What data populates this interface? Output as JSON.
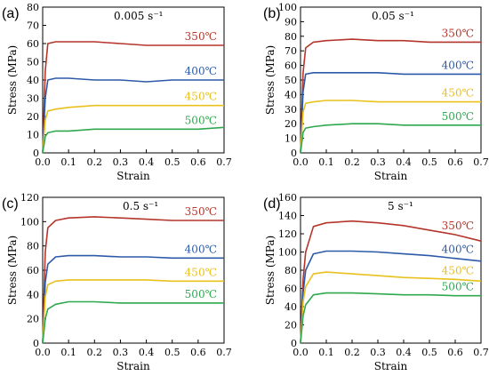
{
  "chart_data": [
    {
      "panel": "(a)",
      "rate": "0.005 s⁻¹",
      "type": "line",
      "xlabel": "Strain",
      "ylabel": "Stress (MPa)",
      "xlim": [
        0,
        0.7
      ],
      "ylim": [
        0,
        80
      ],
      "xticks": [
        "0.0",
        "0.1",
        "0.2",
        "0.3",
        "0.4",
        "0.5",
        "0.6",
        "0.7"
      ],
      "yticks": [
        "0",
        "10",
        "20",
        "30",
        "40",
        "50",
        "60",
        "70",
        "80"
      ],
      "series": [
        {
          "name": "350℃",
          "color": "#b5352a",
          "x": [
            0,
            0.01,
            0.02,
            0.05,
            0.1,
            0.2,
            0.3,
            0.4,
            0.5,
            0.6,
            0.7
          ],
          "y": [
            0,
            45,
            60,
            61,
            61,
            61,
            60,
            59,
            59,
            59,
            59
          ]
        },
        {
          "name": "400℃",
          "color": "#2c5aa8",
          "x": [
            0,
            0.01,
            0.02,
            0.05,
            0.1,
            0.2,
            0.3,
            0.4,
            0.5,
            0.6,
            0.7
          ],
          "y": [
            0,
            30,
            40,
            41,
            41,
            40,
            40,
            39,
            40,
            40,
            40
          ]
        },
        {
          "name": "450℃",
          "color": "#e8c11c",
          "x": [
            0,
            0.01,
            0.02,
            0.05,
            0.1,
            0.2,
            0.3,
            0.4,
            0.5,
            0.6,
            0.7
          ],
          "y": [
            0,
            18,
            23,
            24,
            25,
            26,
            26,
            26,
            26,
            26,
            26
          ]
        },
        {
          "name": "500℃",
          "color": "#2fa84f",
          "x": [
            0,
            0.01,
            0.02,
            0.05,
            0.1,
            0.2,
            0.3,
            0.4,
            0.5,
            0.6,
            0.7
          ],
          "y": [
            0,
            9,
            11,
            12,
            12,
            13,
            13,
            13,
            13,
            13,
            14
          ]
        }
      ]
    },
    {
      "panel": "(b)",
      "rate": "0.05 s⁻¹",
      "type": "line",
      "xlabel": "Strain",
      "ylabel": "Stress (MPa)",
      "xlim": [
        0,
        0.7
      ],
      "ylim": [
        0,
        100
      ],
      "xticks": [
        "0.0",
        "0.1",
        "0.2",
        "0.3",
        "0.4",
        "0.5",
        "0.6",
        "0.7"
      ],
      "yticks": [
        "0",
        "10",
        "20",
        "30",
        "40",
        "50",
        "60",
        "70",
        "80",
        "90",
        "100"
      ],
      "series": [
        {
          "name": "350℃",
          "color": "#b5352a",
          "x": [
            0,
            0.01,
            0.02,
            0.05,
            0.1,
            0.2,
            0.3,
            0.4,
            0.5,
            0.6,
            0.7
          ],
          "y": [
            0,
            55,
            72,
            76,
            77,
            78,
            77,
            77,
            76,
            76,
            76
          ]
        },
        {
          "name": "400℃",
          "color": "#2c5aa8",
          "x": [
            0,
            0.01,
            0.02,
            0.05,
            0.1,
            0.2,
            0.3,
            0.4,
            0.5,
            0.6,
            0.7
          ],
          "y": [
            0,
            42,
            54,
            55,
            55,
            55,
            55,
            54,
            54,
            54,
            54
          ]
        },
        {
          "name": "450℃",
          "color": "#e8c11c",
          "x": [
            0,
            0.01,
            0.02,
            0.05,
            0.1,
            0.2,
            0.3,
            0.4,
            0.5,
            0.6,
            0.7
          ],
          "y": [
            0,
            28,
            34,
            35,
            36,
            36,
            35,
            35,
            35,
            35,
            35
          ]
        },
        {
          "name": "500℃",
          "color": "#2fa84f",
          "x": [
            0,
            0.01,
            0.02,
            0.05,
            0.1,
            0.2,
            0.3,
            0.4,
            0.5,
            0.6,
            0.7
          ],
          "y": [
            0,
            14,
            17,
            18,
            19,
            20,
            20,
            19,
            19,
            19,
            19
          ]
        }
      ]
    },
    {
      "panel": "(c)",
      "rate": "0.5 s⁻¹",
      "type": "line",
      "xlabel": "Strain",
      "ylabel": "Stress (MPa)",
      "xlim": [
        0,
        0.7
      ],
      "ylim": [
        0,
        120
      ],
      "xticks": [
        "0.0",
        "0.1",
        "0.2",
        "0.3",
        "0.4",
        "0.5",
        "0.6",
        "0.7"
      ],
      "yticks": [
        "0",
        "20",
        "40",
        "60",
        "80",
        "100",
        "120"
      ],
      "series": [
        {
          "name": "350℃",
          "color": "#b5352a",
          "x": [
            0,
            0.01,
            0.02,
            0.05,
            0.1,
            0.2,
            0.3,
            0.4,
            0.5,
            0.6,
            0.7
          ],
          "y": [
            0,
            75,
            95,
            101,
            103,
            104,
            103,
            102,
            101,
            101,
            101
          ]
        },
        {
          "name": "400℃",
          "color": "#2c5aa8",
          "x": [
            0,
            0.01,
            0.02,
            0.05,
            0.1,
            0.2,
            0.3,
            0.4,
            0.5,
            0.6,
            0.7
          ],
          "y": [
            0,
            50,
            65,
            71,
            72,
            72,
            71,
            71,
            70,
            70,
            70
          ]
        },
        {
          "name": "450℃",
          "color": "#e8c11c",
          "x": [
            0,
            0.01,
            0.02,
            0.05,
            0.1,
            0.2,
            0.3,
            0.4,
            0.5,
            0.6,
            0.7
          ],
          "y": [
            0,
            38,
            48,
            51,
            52,
            52,
            52,
            52,
            51,
            51,
            51
          ]
        },
        {
          "name": "500℃",
          "color": "#2fa84f",
          "x": [
            0,
            0.01,
            0.02,
            0.05,
            0.1,
            0.2,
            0.3,
            0.4,
            0.5,
            0.6,
            0.7
          ],
          "y": [
            0,
            20,
            28,
            32,
            34,
            34,
            33,
            33,
            33,
            33,
            33
          ]
        }
      ]
    },
    {
      "panel": "(d)",
      "rate": "5 s⁻¹",
      "type": "line",
      "xlabel": "Strain",
      "ylabel": "Stress (MPa)",
      "xlim": [
        0,
        0.7
      ],
      "ylim": [
        0,
        160
      ],
      "xticks": [
        "0.0",
        "0.1",
        "0.2",
        "0.3",
        "0.4",
        "0.5",
        "0.6",
        "0.7"
      ],
      "yticks": [
        "0",
        "20",
        "40",
        "60",
        "80",
        "100",
        "120",
        "140",
        "160"
      ],
      "series": [
        {
          "name": "350℃",
          "color": "#b5352a",
          "x": [
            0,
            0.01,
            0.02,
            0.05,
            0.1,
            0.2,
            0.3,
            0.4,
            0.5,
            0.6,
            0.7
          ],
          "y": [
            0,
            70,
            100,
            128,
            132,
            134,
            132,
            129,
            124,
            119,
            112
          ]
        },
        {
          "name": "400℃",
          "color": "#2c5aa8",
          "x": [
            0,
            0.01,
            0.02,
            0.05,
            0.1,
            0.2,
            0.3,
            0.4,
            0.5,
            0.6,
            0.7
          ],
          "y": [
            0,
            55,
            80,
            98,
            101,
            101,
            100,
            98,
            96,
            93,
            90
          ]
        },
        {
          "name": "450℃",
          "color": "#e8c11c",
          "x": [
            0,
            0.01,
            0.02,
            0.05,
            0.1,
            0.2,
            0.3,
            0.4,
            0.5,
            0.6,
            0.7
          ],
          "y": [
            0,
            45,
            62,
            76,
            78,
            76,
            74,
            72,
            71,
            70,
            68
          ]
        },
        {
          "name": "500℃",
          "color": "#2fa84f",
          "x": [
            0,
            0.01,
            0.02,
            0.05,
            0.1,
            0.2,
            0.3,
            0.4,
            0.5,
            0.6,
            0.7
          ],
          "y": [
            0,
            30,
            42,
            53,
            55,
            55,
            54,
            53,
            53,
            52,
            52
          ]
        }
      ]
    }
  ]
}
